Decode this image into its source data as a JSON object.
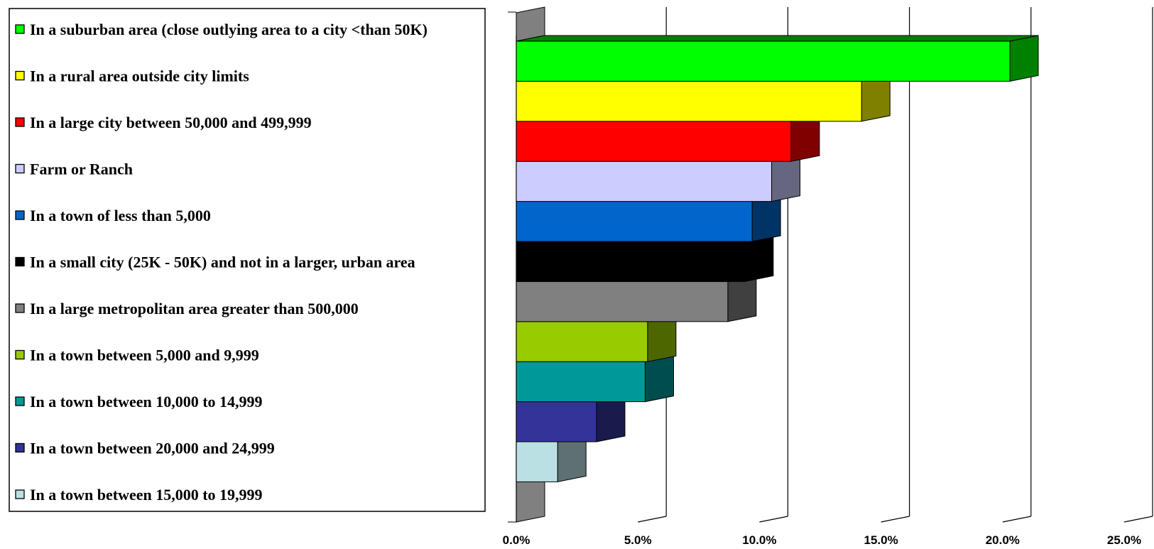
{
  "chart_data": {
    "type": "bar",
    "orientation": "horizontal",
    "three_d": true,
    "categories": [
      "In a suburban area (close outlying area to a city <than 50K)",
      "In a rural area outside city limits",
      "In a large city between 50,000 and 499,999",
      "Farm or Ranch",
      "In a town of less  than 5,000",
      "In a small city (25K - 50K) and not in a larger, urban area",
      "In a large metropolitan area greater than 500,000",
      "In a town between 5,000 and 9,999",
      "In a town between 10,000 to 14,999",
      "In a town between 20,000 and 24,999",
      "In a town between 15,000 to 19,999"
    ],
    "values": [
      20.3,
      14.2,
      11.3,
      10.5,
      9.7,
      9.4,
      8.7,
      5.4,
      5.3,
      3.3,
      1.7
    ],
    "colors": [
      "#00ff00",
      "#ffff00",
      "#ff0000",
      "#ccccff",
      "#0066cc",
      "#000000",
      "#808080",
      "#99cc00",
      "#009999",
      "#333399",
      "#bbe0e3"
    ],
    "side_colors": [
      "#008000",
      "#808000",
      "#800000",
      "#666680",
      "#003366",
      "#000000",
      "#404040",
      "#4d6600",
      "#004d4d",
      "#1a1a4d",
      "#5e7072"
    ],
    "xlim": [
      0,
      25
    ],
    "x_ticks": [
      "0.0%",
      "5.0%",
      "10.0%",
      "15.0%",
      "20.0%",
      "25.0%"
    ],
    "grid": true,
    "legend_position": "left",
    "title": "",
    "xlabel": "",
    "ylabel": ""
  }
}
